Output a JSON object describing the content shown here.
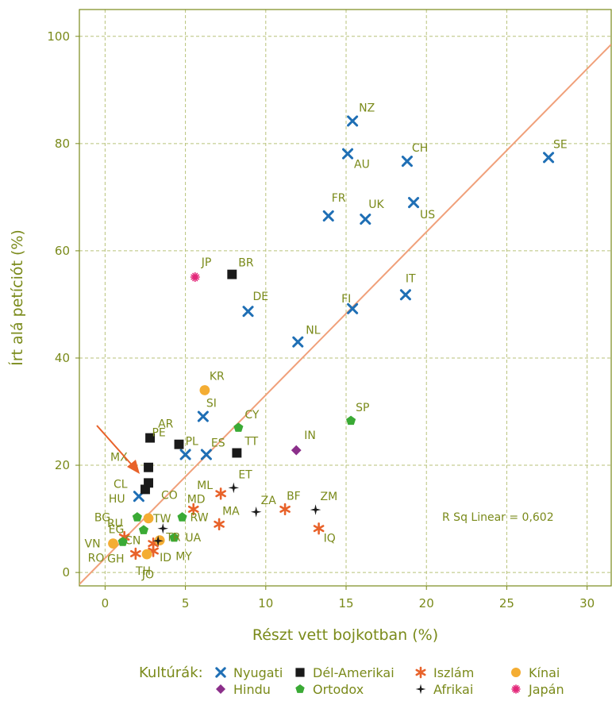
{
  "chart_data": {
    "type": "scatter",
    "xlabel": "Részt vett bojkotban (%)",
    "ylabel": "Írt alá petíciót (%)",
    "xlim": [
      -1.6,
      31.5
    ],
    "ylim": [
      -2.5,
      105.0
    ],
    "xticks": [
      0,
      5,
      10,
      15,
      20,
      25,
      30
    ],
    "yticks": [
      0,
      20,
      40,
      60,
      80,
      100
    ],
    "x_tick_labels": [
      "0",
      "5",
      "10",
      "15",
      "20",
      "25",
      "30"
    ],
    "y_tick_labels": [
      "0",
      "20",
      "40",
      "60",
      "80",
      "100"
    ],
    "grid": true,
    "annotation": "R Sq Linear = 0,602",
    "fit_line": {
      "x": [
        -1.6,
        31.5
      ],
      "y": [
        -2.2,
        98.5
      ],
      "color": "#f0a07a"
    },
    "legend": {
      "title": "Kultúrák:",
      "placement": "bottom",
      "entries": [
        {
          "name": "Nyugati",
          "color": "#1f6fb5",
          "marker": "x"
        },
        {
          "name": "Dél-Amerikai",
          "color": "#1a1a1a",
          "marker": "square"
        },
        {
          "name": "Iszlám",
          "color": "#e8622a",
          "marker": "asterisk"
        },
        {
          "name": "Kínai",
          "color": "#f4ad33",
          "marker": "circle"
        },
        {
          "name": "Hindu",
          "color": "#8b2f8a",
          "marker": "diamond"
        },
        {
          "name": "Ortodox",
          "color": "#3aaa35",
          "marker": "pentagon"
        },
        {
          "name": "Afrikai",
          "color": "#1a1a1a",
          "marker": "star4"
        },
        {
          "name": "Japán",
          "color": "#e3287a",
          "marker": "burst"
        }
      ]
    },
    "series": [
      {
        "name": "Nyugati",
        "points": [
          {
            "label": "NZ",
            "x": 15.4,
            "y": 84.2
          },
          {
            "label": "AU",
            "x": 15.1,
            "y": 78.1
          },
          {
            "label": "CH",
            "x": 18.8,
            "y": 76.7
          },
          {
            "label": "SE",
            "x": 27.6,
            "y": 77.4
          },
          {
            "label": "FR",
            "x": 13.9,
            "y": 66.5
          },
          {
            "label": "UK",
            "x": 16.2,
            "y": 65.9
          },
          {
            "label": "US",
            "x": 19.2,
            "y": 69.0
          },
          {
            "label": "IT",
            "x": 18.7,
            "y": 51.8
          },
          {
            "label": "FI",
            "x": 15.4,
            "y": 49.2
          },
          {
            "label": "DE",
            "x": 8.9,
            "y": 48.7
          },
          {
            "label": "NL",
            "x": 12.0,
            "y": 43.0
          },
          {
            "label": "SI",
            "x": 6.1,
            "y": 29.1
          },
          {
            "label": "PL",
            "x": 5.0,
            "y": 22.0
          },
          {
            "label": "ES",
            "x": 6.3,
            "y": 22.0
          },
          {
            "label": "HU",
            "x": 2.1,
            "y": 14.2
          }
        ]
      },
      {
        "name": "Dél-Amerikai",
        "points": [
          {
            "label": "BR",
            "x": 7.9,
            "y": 55.6
          },
          {
            "label": "AR",
            "x": 2.8,
            "y": 25.1
          },
          {
            "label": "PE",
            "x": 4.6,
            "y": 23.9
          },
          {
            "label": "TT",
            "x": 8.2,
            "y": 22.3
          },
          {
            "label": "MX",
            "x": 2.7,
            "y": 19.6
          },
          {
            "label": "CO",
            "x": 2.7,
            "y": 16.7
          },
          {
            "label": "CL",
            "x": 2.5,
            "y": 15.5
          }
        ]
      },
      {
        "name": "Iszlám",
        "points": [
          {
            "label": "ML",
            "x": 7.2,
            "y": 14.7
          },
          {
            "label": "MD",
            "x": 5.5,
            "y": 11.8
          },
          {
            "label": "MA",
            "x": 7.1,
            "y": 9.0
          },
          {
            "label": "BF",
            "x": 11.2,
            "y": 11.8
          },
          {
            "label": "IQ",
            "x": 13.3,
            "y": 8.2
          },
          {
            "label": "EG",
            "x": 1.2,
            "y": 6.6
          },
          {
            "label": "CN",
            "x": 3.0,
            "y": 5.4
          },
          {
            "label": "ID",
            "x": 3.0,
            "y": 4.0
          },
          {
            "label": "JO",
            "x": 1.9,
            "y": 3.5
          }
        ]
      },
      {
        "name": "Kínai",
        "points": [
          {
            "label": "KR",
            "x": 6.2,
            "y": 34.0
          },
          {
            "label": "TW",
            "x": 2.7,
            "y": 10.1
          },
          {
            "label": "VN",
            "x": 0.5,
            "y": 5.4
          },
          {
            "label": "MY",
            "x": 3.4,
            "y": 6.0
          },
          {
            "label": "TH",
            "x": 2.6,
            "y": 3.4
          }
        ]
      },
      {
        "name": "Hindu",
        "points": [
          {
            "label": "IN",
            "x": 11.9,
            "y": 22.8
          }
        ]
      },
      {
        "name": "Ortodox",
        "points": [
          {
            "label": "CY",
            "x": 8.3,
            "y": 27.0
          },
          {
            "label": "SP",
            "x": 15.3,
            "y": 28.3
          },
          {
            "label": "BG",
            "x": 2.0,
            "y": 10.3
          },
          {
            "label": "RU",
            "x": 2.4,
            "y": 7.9
          },
          {
            "label": "RW",
            "x": 4.8,
            "y": 10.3
          },
          {
            "label": "UA",
            "x": 4.3,
            "y": 6.5
          },
          {
            "label": "RO",
            "x": 1.1,
            "y": 5.7
          }
        ]
      },
      {
        "name": "Afrikai",
        "points": [
          {
            "label": "ET",
            "x": 8.0,
            "y": 15.8
          },
          {
            "label": "ZA",
            "x": 9.4,
            "y": 11.3
          },
          {
            "label": "ZM",
            "x": 13.1,
            "y": 11.7
          },
          {
            "label": "TR",
            "x": 3.6,
            "y": 8.2
          },
          {
            "label": "GH",
            "x": 3.3,
            "y": 5.9
          }
        ]
      },
      {
        "name": "Japán",
        "points": [
          {
            "label": "JP",
            "x": 5.6,
            "y": 55.1
          }
        ]
      }
    ]
  }
}
